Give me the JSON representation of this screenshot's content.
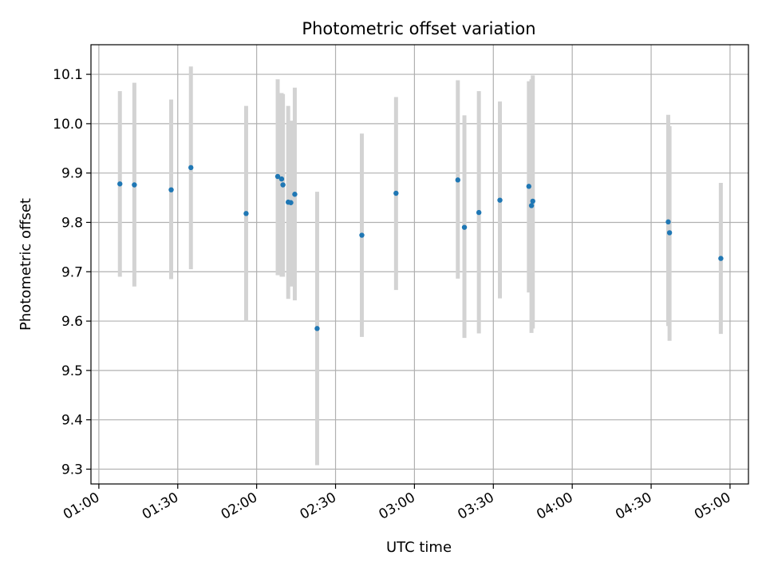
{
  "chart_data": {
    "type": "scatter",
    "title": "Photometric offset variation",
    "xlabel": "UTC time",
    "ylabel": "Photometric offset",
    "xlim": [
      "00:57",
      "05:07"
    ],
    "ylim": [
      9.27,
      10.16
    ],
    "grid": true,
    "x_ticks": [
      "01:00",
      "01:30",
      "02:00",
      "02:30",
      "03:00",
      "03:30",
      "04:00",
      "04:30",
      "05:00"
    ],
    "y_ticks": [
      9.3,
      9.4,
      9.5,
      9.6,
      9.7,
      9.8,
      9.9,
      10.0,
      10.1
    ],
    "y_tick_labels": [
      "9.3",
      "9.4",
      "9.5",
      "9.6",
      "9.7",
      "9.8",
      "9.9",
      "10.0",
      "10.1"
    ],
    "colors": {
      "point": "#1f77b4",
      "error_bar": "#d3d3d3",
      "grid": "#b0b0b0"
    },
    "points": [
      {
        "t": "01:08",
        "y": 9.878,
        "low": 9.69,
        "high": 10.066
      },
      {
        "t": "01:13.5",
        "y": 9.876,
        "low": 9.67,
        "high": 10.083
      },
      {
        "t": "01:27.5",
        "y": 9.866,
        "low": 9.685,
        "high": 10.049
      },
      {
        "t": "01:35",
        "y": 9.911,
        "low": 9.705,
        "high": 10.116
      },
      {
        "t": "01:56",
        "y": 9.818,
        "low": 9.6,
        "high": 10.036
      },
      {
        "t": "02:08",
        "y": 9.893,
        "low": 9.693,
        "high": 10.09
      },
      {
        "t": "02:09.5",
        "y": 9.888,
        "low": 9.69,
        "high": 10.062
      },
      {
        "t": "02:10",
        "y": 9.876,
        "low": 9.69,
        "high": 10.06
      },
      {
        "t": "02:12",
        "y": 9.841,
        "low": 9.645,
        "high": 10.036
      },
      {
        "t": "02:13",
        "y": 9.84,
        "low": 9.67,
        "high": 10.006
      },
      {
        "t": "02:14.5",
        "y": 9.857,
        "low": 9.642,
        "high": 10.073
      },
      {
        "t": "02:23",
        "y": 9.585,
        "low": 9.308,
        "high": 9.862
      },
      {
        "t": "02:40",
        "y": 9.774,
        "low": 9.568,
        "high": 9.98
      },
      {
        "t": "02:53",
        "y": 9.859,
        "low": 9.663,
        "high": 10.054
      },
      {
        "t": "03:16.5",
        "y": 9.886,
        "low": 9.686,
        "high": 10.088
      },
      {
        "t": "03:19",
        "y": 9.79,
        "low": 9.566,
        "high": 10.017
      },
      {
        "t": "03:24.5",
        "y": 9.82,
        "low": 9.575,
        "high": 10.066
      },
      {
        "t": "03:32.5",
        "y": 9.845,
        "low": 9.646,
        "high": 10.045
      },
      {
        "t": "03:43.5",
        "y": 9.873,
        "low": 9.658,
        "high": 10.086
      },
      {
        "t": "03:44.5",
        "y": 9.834,
        "low": 9.576,
        "high": 10.09
      },
      {
        "t": "03:45",
        "y": 9.843,
        "low": 9.585,
        "high": 10.098
      },
      {
        "t": "04:36.5",
        "y": 9.801,
        "low": 9.59,
        "high": 10.018
      },
      {
        "t": "04:37",
        "y": 9.779,
        "low": 9.56,
        "high": 9.995
      },
      {
        "t": "04:56.5",
        "y": 9.727,
        "low": 9.574,
        "high": 9.88
      }
    ]
  }
}
